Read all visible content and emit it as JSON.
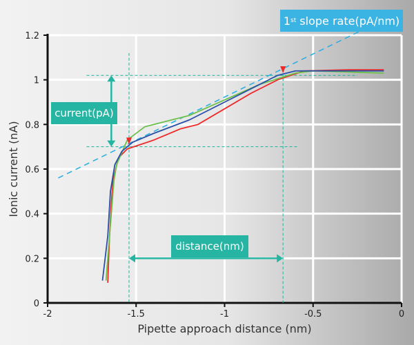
{
  "chart_data": {
    "type": "line",
    "title": "",
    "xlabel": "Pipette approach distance (nm)",
    "ylabel": "Ionic current (nA)",
    "xlim": [
      -2,
      0
    ],
    "ylim": [
      0,
      1.2
    ],
    "xticks": [
      -2,
      -1.5,
      -1,
      -0.5,
      0
    ],
    "xtick_labels": [
      "-2",
      "-1.5",
      "-1",
      "-0.5",
      "0"
    ],
    "yticks": [
      0,
      0.2,
      0.4,
      0.6,
      0.8,
      1,
      1.2
    ],
    "ytick_labels": [
      "0",
      "0.2",
      "0.4",
      "0.6",
      "0.8",
      "1",
      "1.2"
    ],
    "grid": true,
    "series": [
      {
        "name": "red",
        "color": "#ee2a2a",
        "points": [
          [
            -1.66,
            0.09
          ],
          [
            -1.655,
            0.2
          ],
          [
            -1.65,
            0.3
          ],
          [
            -1.64,
            0.45
          ],
          [
            -1.63,
            0.55
          ],
          [
            -1.6,
            0.65
          ],
          [
            -1.55,
            0.69
          ],
          [
            -1.4,
            0.73
          ],
          [
            -1.25,
            0.78
          ],
          [
            -1.15,
            0.8
          ],
          [
            -1.0,
            0.87
          ],
          [
            -0.85,
            0.94
          ],
          [
            -0.7,
            1.0
          ],
          [
            -0.55,
            1.04
          ],
          [
            -0.3,
            1.045
          ],
          [
            -0.1,
            1.045
          ]
        ]
      },
      {
        "name": "green",
        "color": "#6cc04a",
        "points": [
          [
            -1.67,
            0.1
          ],
          [
            -1.655,
            0.25
          ],
          [
            -1.64,
            0.4
          ],
          [
            -1.625,
            0.55
          ],
          [
            -1.61,
            0.62
          ],
          [
            -1.55,
            0.73
          ],
          [
            -1.45,
            0.79
          ],
          [
            -1.35,
            0.81
          ],
          [
            -1.2,
            0.84
          ],
          [
            -1.0,
            0.91
          ],
          [
            -0.8,
            0.98
          ],
          [
            -0.6,
            1.03
          ],
          [
            -0.5,
            1.04
          ],
          [
            -0.3,
            1.035
          ],
          [
            -0.1,
            1.03
          ]
        ]
      },
      {
        "name": "blue",
        "color": "#2a4fa8",
        "points": [
          [
            -1.69,
            0.1
          ],
          [
            -1.675,
            0.2
          ],
          [
            -1.66,
            0.3
          ],
          [
            -1.645,
            0.5
          ],
          [
            -1.62,
            0.62
          ],
          [
            -1.58,
            0.68
          ],
          [
            -1.52,
            0.72
          ],
          [
            -1.4,
            0.76
          ],
          [
            -1.2,
            0.82
          ],
          [
            -1.0,
            0.9
          ],
          [
            -0.85,
            0.96
          ],
          [
            -0.7,
            1.02
          ],
          [
            -0.6,
            1.04
          ],
          [
            -0.4,
            1.04
          ],
          [
            -0.1,
            1.04
          ]
        ]
      }
    ],
    "slope_line": {
      "color": "#29aee0",
      "points": [
        [
          -1.94,
          0.56
        ],
        [
          -0.23,
          1.22
        ]
      ]
    },
    "guides": {
      "color": "#1ab39a",
      "y": [
        1.02,
        0.7
      ],
      "x": [
        -1.54,
        -0.67
      ]
    },
    "markers": [
      [
        -1.54,
        0.71
      ],
      [
        -0.67,
        1.03
      ]
    ],
    "annotations": {
      "slope_label_main": "1",
      "slope_label_sup": "st",
      "slope_label_rest": " slope rate(pA/nm)",
      "current_label": "current(pA)",
      "distance_label": "distance(nm)"
    },
    "colors": {
      "slope_badge": "#3bb3e3",
      "teal_badge": "#26b5a2"
    }
  }
}
